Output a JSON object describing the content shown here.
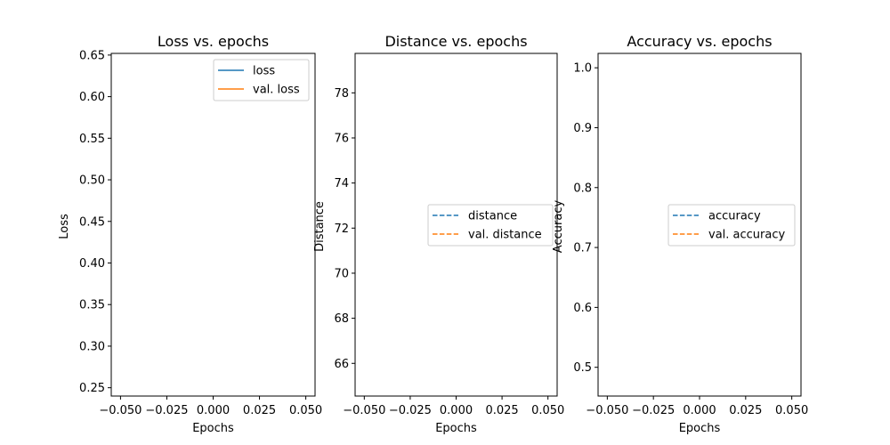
{
  "chart_data": [
    {
      "type": "line",
      "title": "Loss vs. epochs",
      "xlabel": "Epochs",
      "ylabel": "Loss",
      "xlim": [
        -0.055,
        0.055
      ],
      "ylim": [
        0.24,
        0.652
      ],
      "xticks": [
        -0.05,
        -0.025,
        0.0,
        0.025,
        0.05
      ],
      "xtick_labels": [
        "−0.050",
        "−0.025",
        "0.000",
        "0.025",
        "0.050"
      ],
      "yticks": [
        0.25,
        0.3,
        0.35,
        0.4,
        0.45,
        0.5,
        0.55,
        0.6,
        0.65
      ],
      "ytick_labels": [
        "0.25",
        "0.30",
        "0.35",
        "0.40",
        "0.45",
        "0.50",
        "0.55",
        "0.60",
        "0.65"
      ],
      "legend_position": "upper right",
      "grid": false,
      "series": [
        {
          "name": "loss",
          "color": "#1f77b4",
          "dash": "solid",
          "x": [],
          "y": []
        },
        {
          "name": "val. loss",
          "color": "#ff7f0e",
          "dash": "solid",
          "x": [],
          "y": []
        }
      ]
    },
    {
      "type": "line",
      "title": "Distance vs. epochs",
      "xlabel": "Epochs",
      "ylabel": "Distance",
      "xlim": [
        -0.055,
        0.055
      ],
      "ylim": [
        64.55,
        79.75
      ],
      "xticks": [
        -0.05,
        -0.025,
        0.0,
        0.025,
        0.05
      ],
      "xtick_labels": [
        "−0.050",
        "−0.025",
        "0.000",
        "0.025",
        "0.050"
      ],
      "yticks": [
        66,
        68,
        70,
        72,
        74,
        76,
        78
      ],
      "ytick_labels": [
        "66",
        "68",
        "70",
        "72",
        "74",
        "76",
        "78"
      ],
      "legend_position": "center right",
      "grid": false,
      "series": [
        {
          "name": "distance",
          "color": "#1f77b4",
          "dash": "dashed",
          "x": [],
          "y": []
        },
        {
          "name": "val. distance",
          "color": "#ff7f0e",
          "dash": "dashed",
          "x": [],
          "y": []
        }
      ]
    },
    {
      "type": "line",
      "title": "Accuracy vs. epochs",
      "xlabel": "Epochs",
      "ylabel": "Accuracy",
      "xlim": [
        -0.055,
        0.055
      ],
      "ylim": [
        0.452,
        1.024
      ],
      "xticks": [
        -0.05,
        -0.025,
        0.0,
        0.025,
        0.05
      ],
      "xtick_labels": [
        "−0.050",
        "−0.025",
        "0.000",
        "0.025",
        "0.050"
      ],
      "yticks": [
        0.5,
        0.6,
        0.7,
        0.8,
        0.9,
        1.0
      ],
      "ytick_labels": [
        "0.5",
        "0.6",
        "0.7",
        "0.8",
        "0.9",
        "1.0"
      ],
      "legend_position": "center right",
      "grid": false,
      "series": [
        {
          "name": "accuracy",
          "color": "#1f77b4",
          "dash": "dashed",
          "x": [],
          "y": []
        },
        {
          "name": "val. accuracy",
          "color": "#ff7f0e",
          "dash": "dashed",
          "x": [],
          "y": []
        }
      ]
    }
  ]
}
